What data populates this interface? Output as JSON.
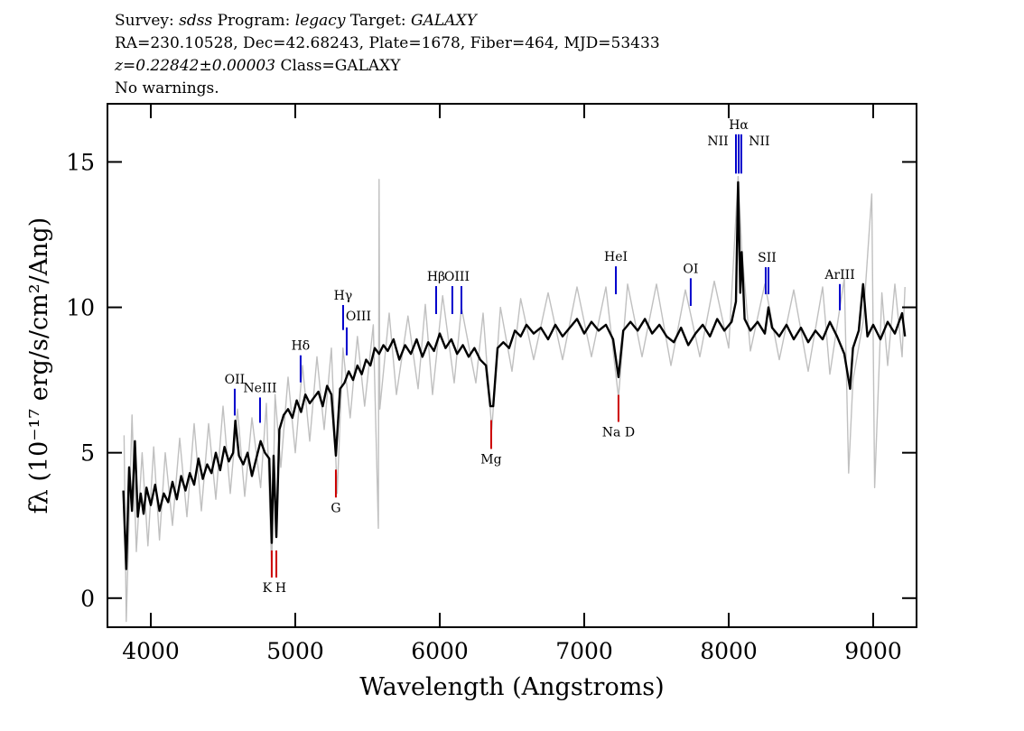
{
  "header": {
    "line1": [
      "Survey:",
      "sdss",
      "Program:",
      "legacy",
      "Target:",
      "GALAXY"
    ],
    "line2": "RA=230.10528, Dec=42.68243, Plate=1678, Fiber=464, MJD=53433",
    "line3": [
      "z=0.22842±0.00003",
      "Class=GALAXY"
    ],
    "line4": "No warnings."
  },
  "chart_data": {
    "type": "line",
    "xlabel": "Wavelength (Angstroms)",
    "ylabel": "fλ (10⁻¹⁷ erg/s/cm²/Ang)",
    "xlim": [
      3700,
      9300
    ],
    "ylim": [
      -1,
      17
    ],
    "xticks": [
      4000,
      5000,
      6000,
      7000,
      8000,
      9000
    ],
    "yticks": [
      0,
      5,
      10,
      15
    ],
    "series": [
      {
        "color": "#c0c0c0",
        "x": [
          3815,
          3830,
          3870,
          3900,
          3940,
          3980,
          4020,
          4060,
          4100,
          4150,
          4200,
          4250,
          4300,
          4350,
          4400,
          4450,
          4500,
          4550,
          4600,
          4650,
          4700,
          4760,
          4800,
          4837,
          4860,
          4900,
          4950,
          5000,
          5050,
          5100,
          5150,
          5200,
          5250,
          5290,
          5330,
          5380,
          5430,
          5480,
          5540,
          5575,
          5580,
          5585,
          5650,
          5700,
          5780,
          5850,
          5900,
          5950,
          6020,
          6100,
          6150,
          6250,
          6300,
          6360,
          6420,
          6500,
          6560,
          6650,
          6750,
          6850,
          6950,
          7050,
          7150,
          7237,
          7300,
          7400,
          7500,
          7600,
          7700,
          7800,
          7900,
          8000,
          8065,
          8090,
          8150,
          8250,
          8350,
          8450,
          8550,
          8650,
          8700,
          8800,
          8830,
          8860,
          8930,
          8990,
          9010,
          9060,
          9100,
          9150,
          9200,
          9220
        ],
        "values": [
          5.6,
          -0.8,
          6.3,
          1.6,
          5.0,
          1.8,
          5.2,
          2.0,
          5.0,
          2.5,
          5.5,
          2.8,
          6.0,
          3.0,
          6.0,
          3.4,
          6.6,
          3.6,
          6.5,
          3.5,
          6.2,
          3.8,
          6.7,
          1.0,
          7.0,
          4.5,
          7.6,
          5.0,
          8.0,
          5.4,
          8.3,
          5.8,
          8.6,
          3.6,
          8.6,
          6.2,
          9.0,
          6.6,
          9.4,
          2.4,
          14.4,
          6.5,
          9.8,
          7.0,
          9.7,
          7.2,
          10.1,
          7.0,
          10.4,
          7.4,
          10.0,
          7.4,
          9.8,
          5.8,
          10.0,
          7.8,
          10.3,
          8.2,
          10.5,
          8.2,
          10.7,
          8.3,
          10.7,
          6.9,
          10.8,
          8.3,
          10.8,
          8.0,
          10.6,
          8.3,
          10.9,
          8.6,
          14.5,
          12.0,
          8.5,
          10.8,
          8.2,
          10.6,
          7.8,
          10.7,
          7.7,
          11.0,
          4.3,
          7.5,
          9.5,
          13.9,
          3.8,
          10.5,
          8.0,
          10.8,
          8.3,
          10.7
        ]
      },
      {
        "color": "#000000",
        "x": [
          3810,
          3830,
          3850,
          3870,
          3890,
          3910,
          3930,
          3950,
          3970,
          4000,
          4030,
          4060,
          4090,
          4120,
          4150,
          4180,
          4210,
          4240,
          4270,
          4300,
          4330,
          4360,
          4390,
          4420,
          4450,
          4480,
          4510,
          4540,
          4570,
          4585,
          4610,
          4640,
          4670,
          4700,
          4730,
          4760,
          4790,
          4820,
          4837,
          4850,
          4869,
          4890,
          4920,
          4950,
          4980,
          5010,
          5040,
          5070,
          5100,
          5130,
          5160,
          5190,
          5220,
          5250,
          5281,
          5310,
          5340,
          5370,
          5400,
          5430,
          5460,
          5490,
          5520,
          5550,
          5580,
          5610,
          5640,
          5680,
          5720,
          5760,
          5800,
          5840,
          5880,
          5920,
          5960,
          6000,
          6040,
          6080,
          6120,
          6160,
          6200,
          6240,
          6280,
          6320,
          6350,
          6370,
          6400,
          6440,
          6480,
          6520,
          6560,
          6600,
          6650,
          6700,
          6750,
          6800,
          6850,
          6900,
          6950,
          7000,
          7050,
          7100,
          7150,
          7200,
          7237,
          7270,
          7320,
          7370,
          7420,
          7470,
          7520,
          7570,
          7620,
          7670,
          7720,
          7770,
          7820,
          7870,
          7920,
          7970,
          8020,
          8050,
          8065,
          8080,
          8090,
          8110,
          8150,
          8200,
          8250,
          8275,
          8300,
          8350,
          8400,
          8450,
          8500,
          8550,
          8600,
          8650,
          8700,
          8750,
          8800,
          8840,
          8860,
          8900,
          8930,
          8960,
          9000,
          9050,
          9100,
          9150,
          9200,
          9220
        ],
        "values": [
          3.7,
          1.0,
          4.5,
          3.0,
          5.4,
          2.8,
          3.6,
          2.9,
          3.8,
          3.2,
          3.9,
          3.0,
          3.6,
          3.3,
          4.0,
          3.4,
          4.2,
          3.7,
          4.3,
          3.9,
          4.8,
          4.1,
          4.6,
          4.3,
          5.0,
          4.4,
          5.2,
          4.7,
          5.0,
          6.1,
          4.9,
          4.6,
          5.0,
          4.2,
          4.8,
          5.4,
          5.0,
          4.8,
          1.9,
          4.9,
          2.1,
          5.8,
          6.3,
          6.5,
          6.2,
          6.8,
          6.4,
          7.0,
          6.7,
          6.9,
          7.1,
          6.6,
          7.3,
          7.0,
          4.9,
          7.2,
          7.4,
          7.8,
          7.5,
          8.0,
          7.7,
          8.2,
          8.0,
          8.6,
          8.4,
          8.7,
          8.5,
          8.9,
          8.2,
          8.7,
          8.4,
          8.9,
          8.3,
          8.8,
          8.5,
          9.1,
          8.6,
          8.9,
          8.4,
          8.7,
          8.3,
          8.6,
          8.2,
          8.0,
          6.6,
          6.6,
          8.6,
          8.8,
          8.6,
          9.2,
          9.0,
          9.4,
          9.1,
          9.3,
          8.9,
          9.4,
          9.0,
          9.3,
          9.6,
          9.1,
          9.5,
          9.2,
          9.4,
          8.9,
          7.6,
          9.2,
          9.5,
          9.2,
          9.6,
          9.1,
          9.4,
          9.0,
          8.8,
          9.3,
          8.7,
          9.1,
          9.4,
          9.0,
          9.6,
          9.2,
          9.5,
          10.2,
          14.3,
          10.5,
          11.9,
          9.6,
          9.2,
          9.5,
          9.1,
          10.0,
          9.3,
          9.0,
          9.4,
          8.9,
          9.3,
          8.8,
          9.2,
          8.9,
          9.5,
          9.0,
          8.4,
          7.2,
          8.6,
          9.2,
          10.8,
          9.0,
          9.4,
          8.9,
          9.5,
          9.1,
          9.8,
          9.0
        ]
      }
    ],
    "lines": [
      {
        "label": "OII",
        "x": [
          4581
        ],
        "y": [
          6.28,
          7.2
        ],
        "color": "#0000cc"
      },
      {
        "label": "NeIII",
        "x": [
          4756
        ],
        "y": [
          6.03,
          6.9
        ],
        "color": "#0000cc"
      },
      {
        "label": "Hδ",
        "x": [
          5037
        ],
        "y": [
          7.42,
          8.35
        ],
        "color": "#0000cc"
      },
      {
        "label": "Hγ",
        "x": [
          5331
        ],
        "y": [
          9.22,
          10.08
        ],
        "color": "#0000cc"
      },
      {
        "label": "OIII",
        "x": [
          5356
        ],
        "y": [
          8.35,
          9.31
        ],
        "color": "#0000cc"
      },
      {
        "label": "Hβ",
        "x": [
          5975
        ],
        "y": [
          9.77,
          10.73
        ],
        "color": "#0000cc"
      },
      {
        "label": "OIII",
        "x": [
          6087,
          6150
        ],
        "y": [
          9.77,
          10.73
        ],
        "color": "#0000cc"
      },
      {
        "label": "HeI",
        "x": [
          7219
        ],
        "y": [
          10.45,
          11.41
        ],
        "color": "#0000cc"
      },
      {
        "label": "OI",
        "x": [
          7737
        ],
        "y": [
          10.05,
          11.0
        ],
        "color": "#0000cc"
      },
      {
        "label": "NII",
        "x": [
          8050
        ],
        "y": [
          14.6,
          15.95
        ],
        "color": "#0000cc"
      },
      {
        "label": "Hα",
        "x": [
          8069
        ],
        "y": [
          14.6,
          15.95
        ],
        "color": "#0000cc"
      },
      {
        "label": "NII",
        "x": [
          8087
        ],
        "y": [
          14.6,
          15.95
        ],
        "color": "#0000cc"
      },
      {
        "label": "SII",
        "x": [
          8256,
          8275
        ],
        "y": [
          10.45,
          11.38
        ],
        "color": "#0000cc"
      },
      {
        "label": "ArIII",
        "x": [
          8769
        ],
        "y": [
          9.9,
          10.8
        ],
        "color": "#0000cc"
      },
      {
        "label": "K",
        "x": [
          4837
        ],
        "y": [
          0.71,
          1.64
        ],
        "color": "#cc0000"
      },
      {
        "label": "H",
        "x": [
          4869
        ],
        "y": [
          0.71,
          1.64
        ],
        "color": "#cc0000"
      },
      {
        "label": "G",
        "x": [
          5281
        ],
        "y": [
          3.46,
          4.42
        ],
        "color": "#cc0000"
      },
      {
        "label": "Mg",
        "x": [
          6356
        ],
        "y": [
          5.13,
          6.12
        ],
        "color": "#cc0000"
      },
      {
        "label": "Na D",
        "x": [
          7237
        ],
        "y": [
          6.06,
          6.99
        ],
        "color": "#cc0000"
      }
    ]
  }
}
